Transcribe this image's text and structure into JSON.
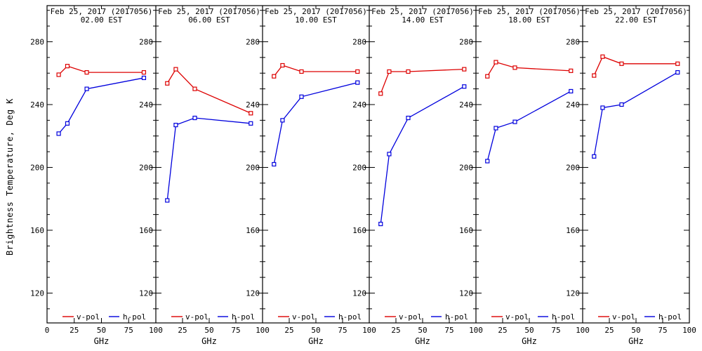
{
  "page": {
    "background": "#ffffff"
  },
  "colors": {
    "v_pol": "#dd0000",
    "h_pol": "#0000dd",
    "frame": "#000000",
    "text": "#000000"
  },
  "ylabel": "Brightness Temperature, Deg K",
  "xlabel": "GHz",
  "legend": [
    {
      "label": "v-pol",
      "color": "#dd0000"
    },
    {
      "label": "h-pol",
      "color": "#0000dd"
    }
  ],
  "chart_data": [
    {
      "type": "line",
      "title": "Feb 25, 2017 (2017056)",
      "subtitle": "02.00 EST",
      "xlabel": "GHz",
      "x": [
        10.7,
        18.7,
        36.5,
        89
      ],
      "xlim": [
        0,
        100
      ],
      "ylim": [
        101,
        303
      ],
      "xticks": [
        0,
        25,
        50,
        75,
        100
      ],
      "yticks": [
        120,
        160,
        200,
        240,
        280
      ],
      "minor_ytick_step": 10,
      "grid": false,
      "legend_position": "bottom-inside",
      "series": [
        {
          "name": "v-pol",
          "color": "#dd0000",
          "marker": "open-square",
          "values": [
            259,
            264.5,
            260.5,
            260.5
          ]
        },
        {
          "name": "h-pol",
          "color": "#0000dd",
          "marker": "open-square",
          "values": [
            221.5,
            228,
            250,
            257
          ]
        }
      ]
    },
    {
      "type": "line",
      "title": "Feb 25, 2017 (2017056)",
      "subtitle": "06.00 EST",
      "xlabel": "GHz",
      "x": [
        10.7,
        18.7,
        36.5,
        89
      ],
      "xlim": [
        0,
        100
      ],
      "ylim": [
        101,
        303
      ],
      "xticks": [
        0,
        25,
        50,
        75,
        100
      ],
      "yticks": [
        120,
        160,
        200,
        240,
        280
      ],
      "minor_ytick_step": 10,
      "grid": false,
      "legend_position": "bottom-inside",
      "series": [
        {
          "name": "v-pol",
          "color": "#dd0000",
          "marker": "open-square",
          "values": [
            253.5,
            262.5,
            250,
            234.5
          ]
        },
        {
          "name": "h-pol",
          "color": "#0000dd",
          "marker": "open-square",
          "values": [
            179,
            227,
            231.5,
            228
          ]
        }
      ]
    },
    {
      "type": "line",
      "title": "Feb 25, 2017 (2017056)",
      "subtitle": "10.00 EST",
      "xlabel": "GHz",
      "x": [
        10.7,
        18.7,
        36.5,
        89
      ],
      "xlim": [
        0,
        100
      ],
      "ylim": [
        101,
        303
      ],
      "xticks": [
        0,
        25,
        50,
        75,
        100
      ],
      "yticks": [
        120,
        160,
        200,
        240,
        280
      ],
      "minor_ytick_step": 10,
      "grid": false,
      "legend_position": "bottom-inside",
      "series": [
        {
          "name": "v-pol",
          "color": "#dd0000",
          "marker": "open-square",
          "values": [
            258,
            265,
            261,
            261
          ]
        },
        {
          "name": "h-pol",
          "color": "#0000dd",
          "marker": "open-square",
          "values": [
            202,
            230,
            245,
            254
          ]
        }
      ]
    },
    {
      "type": "line",
      "title": "Feb 25, 2017 (2017056)",
      "subtitle": "14.00 EST",
      "xlabel": "GHz",
      "x": [
        10.7,
        18.7,
        36.5,
        89
      ],
      "xlim": [
        0,
        100
      ],
      "ylim": [
        101,
        303
      ],
      "xticks": [
        0,
        25,
        50,
        75,
        100
      ],
      "yticks": [
        120,
        160,
        200,
        240,
        280
      ],
      "minor_ytick_step": 10,
      "grid": false,
      "legend_position": "bottom-inside",
      "series": [
        {
          "name": "v-pol",
          "color": "#dd0000",
          "marker": "open-square",
          "values": [
            247,
            261,
            261,
            262.5
          ]
        },
        {
          "name": "h-pol",
          "color": "#0000dd",
          "marker": "open-square",
          "values": [
            164,
            208.5,
            231.5,
            251.5
          ]
        }
      ]
    },
    {
      "type": "line",
      "title": "Feb 25, 2017 (2017056)",
      "subtitle": "18.00 EST",
      "xlabel": "GHz",
      "x": [
        10.7,
        18.7,
        36.5,
        89
      ],
      "xlim": [
        0,
        100
      ],
      "ylim": [
        101,
        303
      ],
      "xticks": [
        0,
        25,
        50,
        75,
        100
      ],
      "yticks": [
        120,
        160,
        200,
        240,
        280
      ],
      "minor_ytick_step": 10,
      "grid": false,
      "legend_position": "bottom-inside",
      "series": [
        {
          "name": "v-pol",
          "color": "#dd0000",
          "marker": "open-square",
          "values": [
            258,
            267,
            263.5,
            261.5
          ]
        },
        {
          "name": "h-pol",
          "color": "#0000dd",
          "marker": "open-square",
          "values": [
            204,
            225,
            229,
            248.5
          ]
        }
      ]
    },
    {
      "type": "line",
      "title": "Feb 25, 2017 (2017056)",
      "subtitle": "22.00 EST",
      "xlabel": "GHz",
      "x": [
        10.7,
        18.7,
        36.5,
        89
      ],
      "xlim": [
        0,
        100
      ],
      "ylim": [
        101,
        303
      ],
      "xticks": [
        0,
        25,
        50,
        75,
        100
      ],
      "yticks": [
        120,
        160,
        200,
        240,
        280
      ],
      "minor_ytick_step": 10,
      "grid": false,
      "legend_position": "bottom-inside",
      "series": [
        {
          "name": "v-pol",
          "color": "#dd0000",
          "marker": "open-square",
          "values": [
            258.5,
            270.5,
            266,
            266
          ]
        },
        {
          "name": "h-pol",
          "color": "#0000dd",
          "marker": "open-square",
          "values": [
            207,
            238,
            240,
            260.5
          ]
        }
      ]
    }
  ]
}
